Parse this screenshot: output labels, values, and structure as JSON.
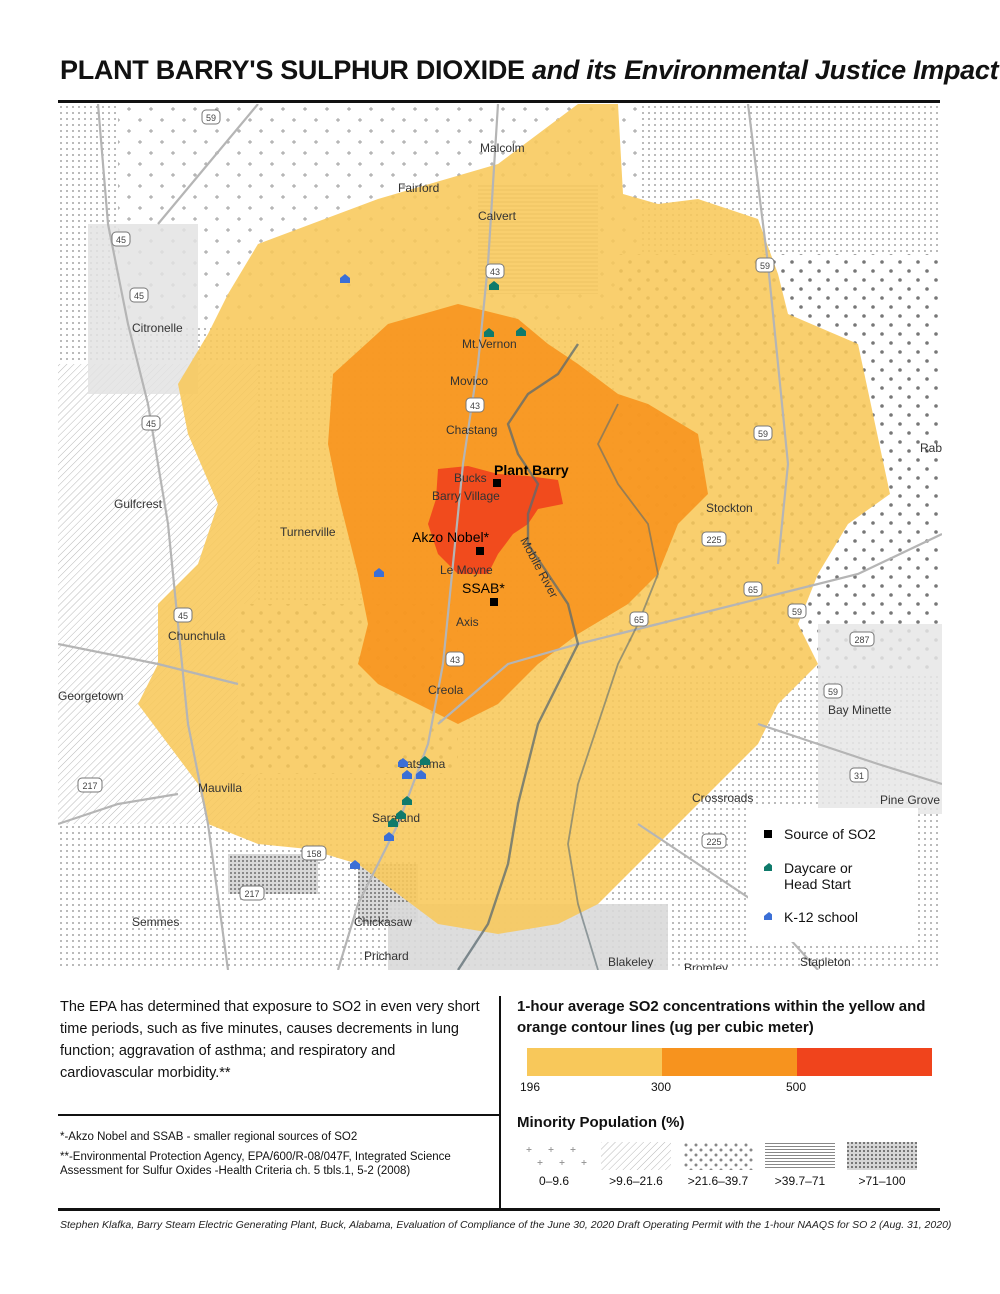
{
  "header": {
    "title_bold": "PLANT BARRY'S SULPHUR DIOXIDE",
    "title_italic": "and its Environmental Justice Impact"
  },
  "colors": {
    "yellow_zone": "#f8c85a",
    "orange_zone": "#f7931e",
    "red_zone": "#f0441c",
    "source_marker": "#000000",
    "daycare_marker": "#0f7a6b",
    "school_marker": "#3b6fd6",
    "river": "#5a6a70"
  },
  "map": {
    "place_labels": [
      "Malcolm",
      "Fairford",
      "Calvert",
      "Citronelle",
      "Mt.Vernon",
      "Movico",
      "Chastang",
      "Bucks",
      "Barry Village",
      "Gulfcrest",
      "Turnerville",
      "Le Moyne",
      "Axis",
      "Chunchula",
      "Georgetown",
      "Creola",
      "Stockton",
      "Mauvilla",
      "Satsuma",
      "Saraland",
      "Semmes",
      "Chickasaw",
      "Crossroads",
      "Bay Minette",
      "Pine Grove",
      "Blakeley",
      "Bromley",
      "Stapleton",
      "Prichard",
      "Rab"
    ],
    "feature_labels": {
      "plant_barry": "Plant Barry",
      "akzo_nobel": "Akzo Nobel*",
      "ssab": "SSAB*",
      "river": "Mobile River"
    },
    "highway_labels": [
      "59",
      "45",
      "45",
      "45",
      "45",
      "43",
      "43",
      "43",
      "59",
      "59",
      "59",
      "59",
      "225",
      "225",
      "65",
      "65",
      "287",
      "217",
      "217",
      "158",
      "31"
    ],
    "marker_icons": {
      "source": "black-square",
      "daycare": "teal-house",
      "school": "blue-house"
    }
  },
  "map_legend": {
    "source": "Source of SO2",
    "daycare": "Daycare or\nHead Start",
    "school": "K-12 school"
  },
  "body_text": "The EPA has determined that exposure to SO2 in even very short time periods, such as five minutes, causes decrements in lung function; aggravation of asthma; and respiratory and cardiovascular morbidity.**",
  "notes": [
    "*-Akzo Nobel and SSAB - smaller regional sources of SO2",
    "**-Environmental Protection Agency, EPA/600/R-08/047F, Integrated Science Assessment for Sulfur Oxides -Health Criteria ch. 5 tbls.1, 5-2 (2008)"
  ],
  "so2_legend": {
    "title": "1-hour average SO2 concentrations within the yellow and orange contour lines (ug per cubic meter)",
    "ticks": [
      "196",
      "300",
      "500"
    ]
  },
  "minority_legend": {
    "title": "Minority Population (%)",
    "classes": [
      "0–9.6",
      ">9.6–21.6",
      ">21.6–39.7",
      ">39.7–71",
      ">71–100"
    ]
  },
  "source_citation": "Stephen Klafka, Barry Steam Electric Generating Plant, Buck, Alabama, Evaluation of Compliance of the June 30, 2020 Draft Operating Permit with the 1-hour NAAQS for SO 2 (Aug. 31, 2020)"
}
